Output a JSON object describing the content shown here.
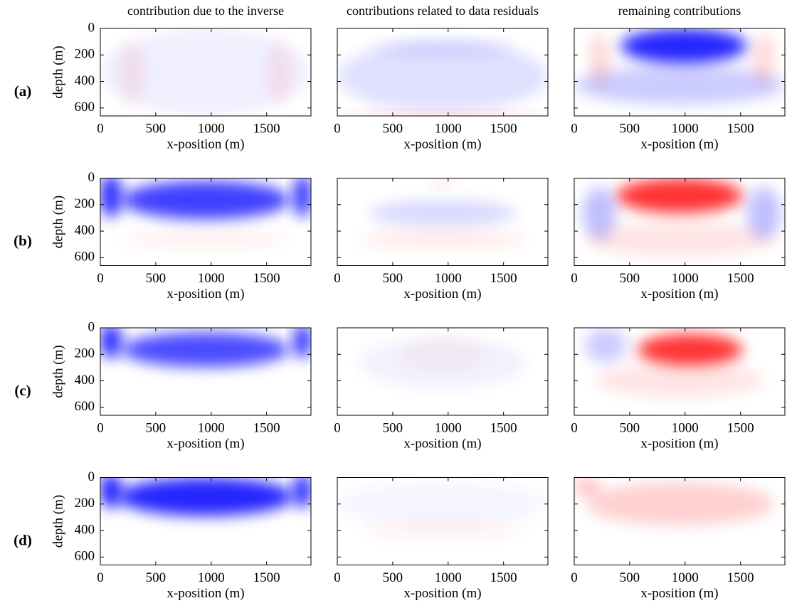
{
  "chart_data": [
    {
      "type": "heatmap",
      "title": "contribution due to the inverse",
      "panel_label": "(a)",
      "xlabel": "x-position (m)",
      "ylabel": "depth (m)",
      "xlim": [
        0,
        1900
      ],
      "ylim": [
        0,
        660
      ],
      "y_inverted": true,
      "xticks": [
        0,
        500,
        1000,
        1500
      ],
      "yticks": [
        0,
        200,
        400,
        600
      ],
      "ytick_labels": true
    },
    {
      "type": "heatmap",
      "title": "contributions related to data residuals",
      "xlabel": "x-position (m)",
      "xlim": [
        0,
        1900
      ],
      "ylim": [
        0,
        660
      ],
      "y_inverted": true,
      "xticks": [
        0,
        500,
        1000,
        1500
      ],
      "yticks": [
        0,
        200,
        400,
        600
      ],
      "ytick_labels": false
    },
    {
      "type": "heatmap",
      "title": "remaining contributions",
      "xlabel": "x-position (m)",
      "xlim": [
        0,
        1900
      ],
      "ylim": [
        0,
        660
      ],
      "y_inverted": true,
      "xticks": [
        0,
        500,
        1000,
        1500
      ],
      "yticks": [
        0,
        200,
        400,
        600
      ],
      "ytick_labels": false
    },
    {
      "type": "heatmap",
      "panel_label": "(b)",
      "xlabel": "x-position (m)",
      "ylabel": "depth (m)",
      "xlim": [
        0,
        1900
      ],
      "ylim": [
        0,
        660
      ],
      "y_inverted": true,
      "xticks": [
        0,
        500,
        1000,
        1500
      ],
      "yticks": [
        0,
        200,
        400,
        600
      ],
      "ytick_labels": true
    },
    {
      "type": "heatmap",
      "xlabel": "x-position (m)",
      "xlim": [
        0,
        1900
      ],
      "ylim": [
        0,
        660
      ],
      "y_inverted": true,
      "xticks": [
        0,
        500,
        1000,
        1500
      ],
      "yticks": [
        0,
        200,
        400,
        600
      ],
      "ytick_labels": false
    },
    {
      "type": "heatmap",
      "xlabel": "x-position (m)",
      "xlim": [
        0,
        1900
      ],
      "ylim": [
        0,
        660
      ],
      "y_inverted": true,
      "xticks": [
        0,
        500,
        1000,
        1500
      ],
      "yticks": [
        0,
        200,
        400,
        600
      ],
      "ytick_labels": false
    },
    {
      "type": "heatmap",
      "panel_label": "(c)",
      "xlabel": "x-position (m)",
      "ylabel": "depth (m)",
      "xlim": [
        0,
        1900
      ],
      "ylim": [
        0,
        660
      ],
      "y_inverted": true,
      "xticks": [
        0,
        500,
        1000,
        1500
      ],
      "yticks": [
        0,
        200,
        400,
        600
      ],
      "ytick_labels": true
    },
    {
      "type": "heatmap",
      "xlabel": "x-position (m)",
      "xlim": [
        0,
        1900
      ],
      "ylim": [
        0,
        660
      ],
      "y_inverted": true,
      "xticks": [
        0,
        500,
        1000,
        1500
      ],
      "yticks": [
        0,
        200,
        400,
        600
      ],
      "ytick_labels": false
    },
    {
      "type": "heatmap",
      "xlabel": "x-position (m)",
      "xlim": [
        0,
        1900
      ],
      "ylim": [
        0,
        660
      ],
      "y_inverted": true,
      "xticks": [
        0,
        500,
        1000,
        1500
      ],
      "yticks": [
        0,
        200,
        400,
        600
      ],
      "ytick_labels": false
    },
    {
      "type": "heatmap",
      "panel_label": "(d)",
      "xlabel": "x-position (m)",
      "ylabel": "depth (m)",
      "xlim": [
        0,
        1900
      ],
      "ylim": [
        0,
        660
      ],
      "y_inverted": true,
      "xticks": [
        0,
        500,
        1000,
        1500
      ],
      "yticks": [
        0,
        200,
        400,
        600
      ],
      "ytick_labels": true
    },
    {
      "type": "heatmap",
      "xlabel": "x-position (m)",
      "xlim": [
        0,
        1900
      ],
      "ylim": [
        0,
        660
      ],
      "y_inverted": true,
      "xticks": [
        0,
        500,
        1000,
        1500
      ],
      "yticks": [
        0,
        200,
        400,
        600
      ],
      "ytick_labels": false
    },
    {
      "type": "heatmap",
      "xlabel": "x-position (m)",
      "xlim": [
        0,
        1900
      ],
      "ylim": [
        0,
        660
      ],
      "y_inverted": true,
      "xticks": [
        0,
        500,
        1000,
        1500
      ],
      "yticks": [
        0,
        200,
        400,
        600
      ],
      "ytick_labels": false
    }
  ]
}
